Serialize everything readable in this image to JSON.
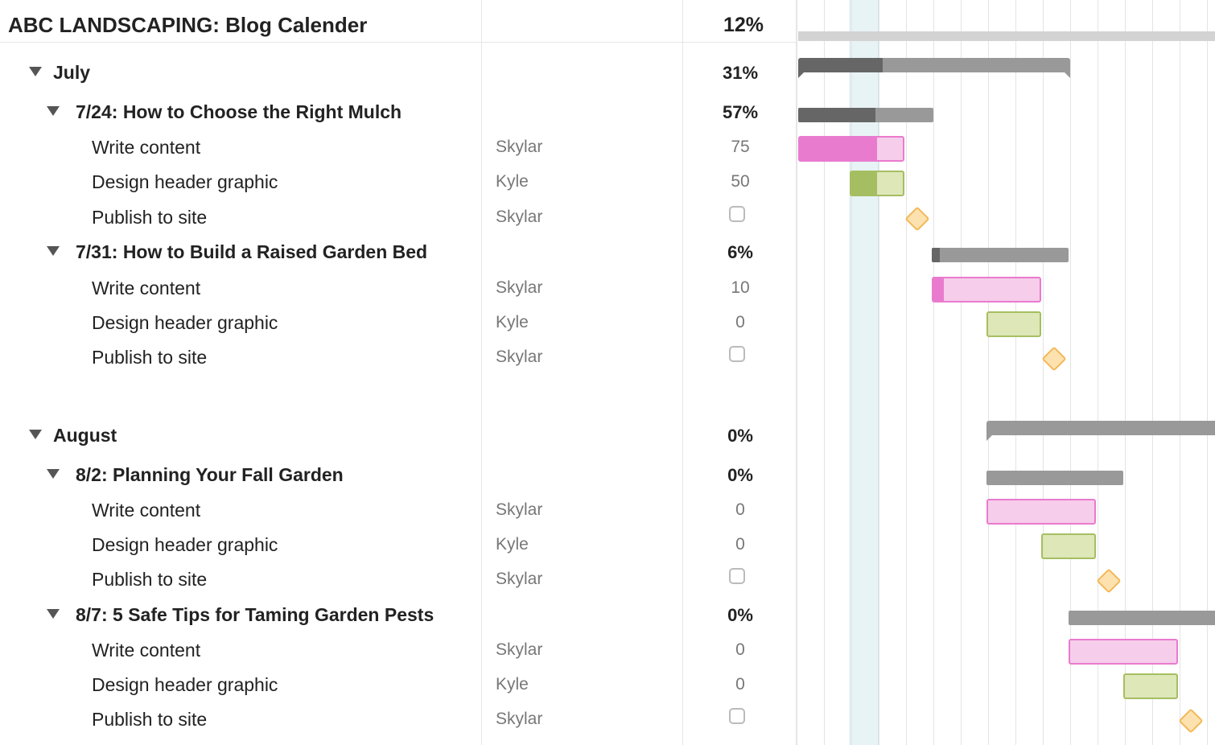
{
  "project": {
    "title": "ABC LANDSCAPING: Blog Calender",
    "progress": "12%",
    "progress_value": 12
  },
  "colors": {
    "summary_dark": "#666666",
    "summary_light": "#999999",
    "header_bar": "#d3d3d3",
    "write_fill": "#e97bce",
    "write_bg": "#f6cdea",
    "write_border": "#e97bce",
    "design_fill": "#a6be62",
    "design_bg": "#dde7b8",
    "design_border": "#a6be62",
    "milestone_bg": "#fde2b0",
    "milestone_border": "#f3b857",
    "today_bg": "#e8f3f6",
    "gridline": "#e4e4e4"
  },
  "icons": {
    "expand": "triangle-down-icon",
    "checkbox": "checkbox-icon",
    "milestone": "diamond-icon"
  },
  "groups": [
    {
      "name": "July",
      "progress": "31%",
      "progress_value": 31,
      "posts": [
        {
          "name": "7/24: How to Choose the Right Mulch",
          "progress": "57%",
          "progress_value": 57,
          "tasks": [
            {
              "name": "Write content",
              "assignee": "Skylar",
              "progress": "75",
              "progress_value": 75,
              "kind": "write"
            },
            {
              "name": "Design header graphic",
              "assignee": "Kyle",
              "progress": "50",
              "progress_value": 50,
              "kind": "design"
            },
            {
              "name": "Publish to site",
              "assignee": "Skylar",
              "progress": null,
              "kind": "milestone",
              "done": false
            }
          ]
        },
        {
          "name": "7/31: How to Build a Raised Garden Bed",
          "progress": "6%",
          "progress_value": 6,
          "tasks": [
            {
              "name": "Write content",
              "assignee": "Skylar",
              "progress": "10",
              "progress_value": 10,
              "kind": "write"
            },
            {
              "name": "Design header graphic",
              "assignee": "Kyle",
              "progress": "0",
              "progress_value": 0,
              "kind": "design"
            },
            {
              "name": "Publish to site",
              "assignee": "Skylar",
              "progress": null,
              "kind": "milestone",
              "done": false
            }
          ]
        }
      ]
    },
    {
      "name": "August",
      "progress": "0%",
      "progress_value": 0,
      "posts": [
        {
          "name": "8/2: Planning Your Fall Garden",
          "progress": "0%",
          "progress_value": 0,
          "tasks": [
            {
              "name": "Write content",
              "assignee": "Skylar",
              "progress": "0",
              "progress_value": 0,
              "kind": "write"
            },
            {
              "name": "Design header graphic",
              "assignee": "Kyle",
              "progress": "0",
              "progress_value": 0,
              "kind": "design"
            },
            {
              "name": "Publish to site",
              "assignee": "Skylar",
              "progress": null,
              "kind": "milestone",
              "done": false
            }
          ]
        },
        {
          "name": "8/7: 5 Safe Tips for Taming Garden Pests",
          "progress": "0%",
          "progress_value": 0,
          "tasks": [
            {
              "name": "Write content",
              "assignee": "Skylar",
              "progress": "0",
              "progress_value": 0,
              "kind": "write"
            },
            {
              "name": "Design header graphic",
              "assignee": "Kyle",
              "progress": "0",
              "progress_value": 0,
              "kind": "design"
            },
            {
              "name": "Publish to site",
              "assignee": "Skylar",
              "progress": null,
              "kind": "milestone",
              "done": false
            }
          ]
        }
      ]
    }
  ]
}
